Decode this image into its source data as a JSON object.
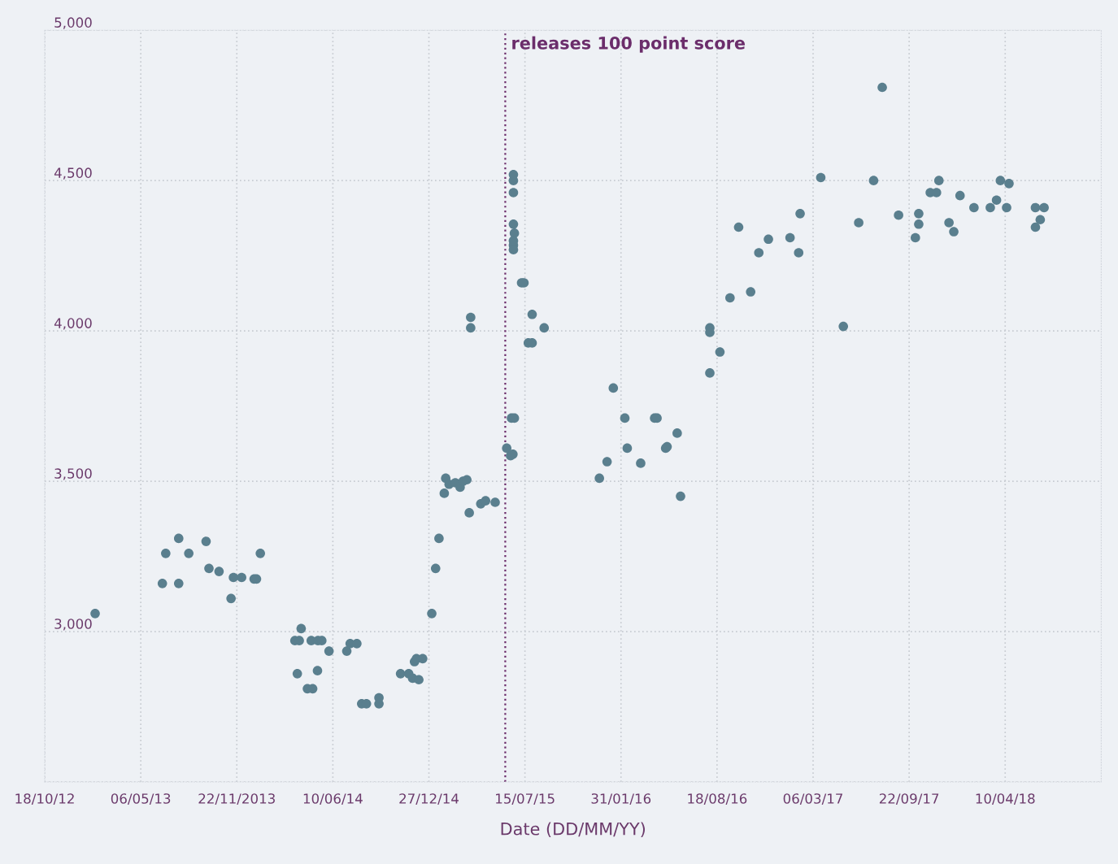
{
  "chart_data": {
    "type": "scatter",
    "xlabel": "Date (DD/MM/YY)",
    "x": [
      "2013-01-31",
      "2013-06-20",
      "2013-06-27",
      "2013-07-24",
      "2013-07-24",
      "2013-08-14",
      "2013-09-19",
      "2013-09-25",
      "2013-10-16",
      "2013-11-10",
      "2013-11-15",
      "2013-12-02",
      "2013-12-28",
      "2014-01-02",
      "2014-01-10",
      "2014-03-23",
      "2014-04-01",
      "2014-04-05",
      "2014-03-28",
      "2014-04-18",
      "2014-04-29",
      "2014-04-26",
      "2014-05-09",
      "2014-05-10",
      "2014-05-18",
      "2014-06-02",
      "2014-07-09",
      "2014-07-16",
      "2014-07-30",
      "2014-08-09",
      "2014-08-19",
      "2014-09-14",
      "2014-09-14",
      "2014-10-29",
      "2014-11-15",
      "2014-11-23",
      "2014-12-06",
      "2014-11-27",
      "2014-12-01",
      "2014-12-14",
      "2015-01-02",
      "2015-01-10",
      "2015-01-17",
      "2015-01-28",
      "2015-01-31",
      "2015-02-07",
      "2015-02-20",
      "2015-03-02",
      "2015-03-08",
      "2015-03-16",
      "2015-03-21",
      "2015-03-24",
      "2015-03-24",
      "2015-04-14",
      "2015-04-24",
      "2015-05-14",
      "2015-06-07",
      "2015-06-15",
      "2015-06-20",
      "2015-06-17",
      "2015-06-23",
      "2015-06-21",
      "2015-06-21",
      "2015-06-21",
      "2015-06-21",
      "2015-06-23",
      "2015-06-21",
      "2015-06-21",
      "2015-06-21",
      "2015-07-08",
      "2015-07-13",
      "2015-07-22",
      "2015-07-30",
      "2015-07-30",
      "2015-08-24",
      "2015-12-17",
      "2016-01-02",
      "2016-01-15",
      "2016-02-08",
      "2016-02-13",
      "2016-03-12",
      "2016-04-10",
      "2016-04-15",
      "2016-05-03",
      "2016-05-06",
      "2016-05-27",
      "2016-06-03",
      "2016-08-03",
      "2016-08-03",
      "2016-08-03",
      "2016-08-24",
      "2016-09-14",
      "2016-10-02",
      "2016-10-27",
      "2016-11-13",
      "2016-12-03",
      "2017-01-17",
      "2017-02-04",
      "2017-02-07",
      "2017-03-22",
      "2017-05-08",
      "2017-06-09",
      "2017-07-10",
      "2017-07-28",
      "2017-08-31",
      "2017-10-05",
      "2017-10-12",
      "2017-10-12",
      "2017-11-05",
      "2017-11-18",
      "2017-11-23",
      "2017-12-14",
      "2017-12-24",
      "2018-01-06",
      "2018-02-04",
      "2018-03-10",
      "2018-03-23",
      "2018-03-31",
      "2018-04-13",
      "2018-04-18",
      "2018-06-12",
      "2018-06-22",
      "2018-06-12",
      "2018-06-30"
    ],
    "values": [
      3060,
      3160,
      3260,
      3310,
      3160,
      3260,
      3300,
      3210,
      3200,
      3110,
      3180,
      3180,
      3175,
      3175,
      3260,
      2970,
      2970,
      3010,
      2860,
      2810,
      2810,
      2970,
      2870,
      2970,
      2970,
      2935,
      2935,
      2960,
      2960,
      2760,
      2760,
      2760,
      2780,
      2860,
      2860,
      2845,
      2840,
      2900,
      2910,
      2910,
      3060,
      3210,
      3310,
      3460,
      3510,
      3490,
      3495,
      3480,
      3500,
      3505,
      3395,
      4045,
      4010,
      3425,
      3435,
      3430,
      3610,
      3585,
      3590,
      3710,
      3710,
      4520,
      4500,
      4460,
      4355,
      4325,
      4300,
      4285,
      4270,
      4160,
      4160,
      3960,
      3960,
      4055,
      4010,
      3510,
      3565,
      3810,
      3710,
      3610,
      3560,
      3710,
      3710,
      3610,
      3615,
      3660,
      3450,
      4010,
      3995,
      3860,
      3930,
      4110,
      4345,
      4130,
      4260,
      4305,
      4310,
      4260,
      4390,
      4510,
      4015,
      4360,
      4500,
      4810,
      4385,
      4310,
      4355,
      4390,
      4460,
      4460,
      4500,
      4360,
      4330,
      4450,
      4410,
      4410,
      4435,
      4500,
      4410,
      4490,
      4345,
      4370,
      4410,
      4410
    ],
    "color": "#5a7f8e",
    "marker": "circle",
    "xlim": [
      "2012-10-18",
      "2018-10-27"
    ],
    "xticks": [
      {
        "value": "2012-10-18",
        "label": "18/10/12"
      },
      {
        "value": "2013-05-06",
        "label": "06/05/13"
      },
      {
        "value": "2013-11-22",
        "label": "22/11/2013"
      },
      {
        "value": "2014-06-10",
        "label": "10/06/14"
      },
      {
        "value": "2014-12-27",
        "label": "27/12/14"
      },
      {
        "value": "2015-07-15",
        "label": "15/07/15"
      },
      {
        "value": "2016-01-31",
        "label": "31/01/16"
      },
      {
        "value": "2016-08-18",
        "label": "18/08/16"
      },
      {
        "value": "2017-03-06",
        "label": "06/03/17"
      },
      {
        "value": "2017-09-22",
        "label": "22/09/17"
      },
      {
        "value": "2018-04-10",
        "label": "10/04/18"
      }
    ],
    "ylim": [
      2500,
      5000
    ],
    "yticks": [
      {
        "value": 2500,
        "label": null
      },
      {
        "value": 3000,
        "label": "3,000"
      },
      {
        "value": 3500,
        "label": "3,500"
      },
      {
        "value": 4000,
        "label": "4,000"
      },
      {
        "value": 4500,
        "label": "4,500"
      },
      {
        "value": 5000,
        "label": "5,000"
      }
    ],
    "grid": true,
    "ref_lines": [
      {
        "axis": "x",
        "value": "2015-06-04",
        "label": "releases 100 point score",
        "color": "#6b2d6b",
        "line_style": "dotted"
      }
    ]
  }
}
